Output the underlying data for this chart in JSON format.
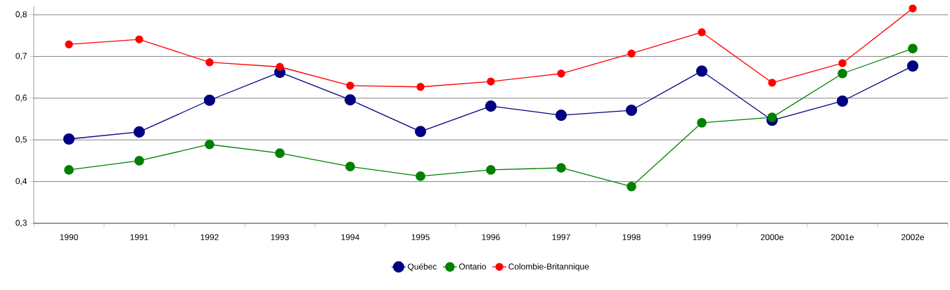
{
  "chart_data": {
    "type": "line",
    "categories": [
      "1990",
      "1991",
      "1992",
      "1993",
      "1994",
      "1995",
      "1996",
      "1997",
      "1998",
      "1999",
      "2000e",
      "2001e",
      "2002e"
    ],
    "series": [
      {
        "name": "Québec",
        "color": "#000080",
        "values": [
          0.502,
          0.519,
          0.595,
          0.662,
          0.596,
          0.52,
          0.581,
          0.559,
          0.571,
          0.665,
          0.547,
          0.593,
          0.677
        ]
      },
      {
        "name": "Ontario",
        "color": "#008000",
        "values": [
          0.428,
          0.45,
          0.489,
          0.468,
          0.436,
          0.413,
          0.428,
          0.433,
          0.388,
          0.541,
          0.554,
          0.659,
          0.719
        ]
      },
      {
        "name": "Colombie-Britannique",
        "color": "#ff0000",
        "values": [
          0.729,
          0.741,
          0.686,
          0.675,
          0.63,
          0.627,
          0.64,
          0.659,
          0.707,
          0.758,
          0.637,
          0.684,
          0.815
        ]
      }
    ],
    "ylim": [
      0.3,
      0.82
    ],
    "yticks": [
      {
        "value": 0.3,
        "label": "0,3"
      },
      {
        "value": 0.4,
        "label": "0,4"
      },
      {
        "value": 0.5,
        "label": "0,5"
      },
      {
        "value": 0.6,
        "label": "0,6"
      },
      {
        "value": 0.7,
        "label": "0,7"
      },
      {
        "value": 0.8,
        "label": "0,8"
      }
    ],
    "grid": "y",
    "legend": "bottom",
    "marker": "circle",
    "line_style": "solid"
  }
}
